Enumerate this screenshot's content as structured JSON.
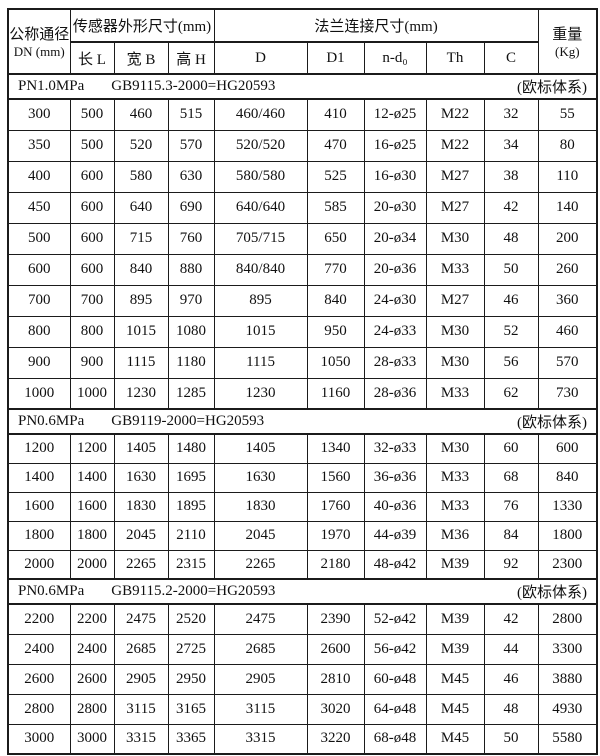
{
  "page": {
    "background": "#ffffff",
    "border_color": "#1b1b1b",
    "text_color": "#101010"
  },
  "table": {
    "header": {
      "dn_line1": "公称通径",
      "dn_line2": "DN (mm)",
      "group_sensor": "传感器外形尺寸(mm)",
      "group_flange": "法兰连接尺寸(mm)",
      "weight_line1": "重量",
      "weight_line2": "(Kg)",
      "sub_columns": [
        "长 L",
        "宽 B",
        "高 H",
        "D",
        "D1",
        "n-d₀",
        "Th",
        "C"
      ]
    },
    "sections": [
      {
        "pressure": "PN1.0MPa",
        "standard": "GB9115.3-2000=HG20593",
        "note": "(欧标体系)",
        "rows": [
          [
            "300",
            "500",
            "460",
            "515",
            "460/460",
            "410",
            "12-ø25",
            "M22",
            "32",
            "55"
          ],
          [
            "350",
            "500",
            "520",
            "570",
            "520/520",
            "470",
            "16-ø25",
            "M22",
            "34",
            "80"
          ],
          [
            "400",
            "600",
            "580",
            "630",
            "580/580",
            "525",
            "16-ø30",
            "M27",
            "38",
            "110"
          ],
          [
            "450",
            "600",
            "640",
            "690",
            "640/640",
            "585",
            "20-ø30",
            "M27",
            "42",
            "140"
          ],
          [
            "500",
            "600",
            "715",
            "760",
            "705/715",
            "650",
            "20-ø34",
            "M30",
            "48",
            "200"
          ],
          [
            "600",
            "600",
            "840",
            "880",
            "840/840",
            "770",
            "20-ø36",
            "M33",
            "50",
            "260"
          ],
          [
            "700",
            "700",
            "895",
            "970",
            "895",
            "840",
            "24-ø30",
            "M27",
            "46",
            "360"
          ],
          [
            "800",
            "800",
            "1015",
            "1080",
            "1015",
            "950",
            "24-ø33",
            "M30",
            "52",
            "460"
          ],
          [
            "900",
            "900",
            "1115",
            "1180",
            "1115",
            "1050",
            "28-ø33",
            "M30",
            "56",
            "570"
          ],
          [
            "1000",
            "1000",
            "1230",
            "1285",
            "1230",
            "1160",
            "28-ø36",
            "M33",
            "62",
            "730"
          ]
        ]
      },
      {
        "pressure": "PN0.6MPa",
        "standard": "GB9119-2000=HG20593",
        "note": "(欧标体系)",
        "rows": [
          [
            "1200",
            "1200",
            "1405",
            "1480",
            "1405",
            "1340",
            "32-ø33",
            "M30",
            "60",
            "600"
          ],
          [
            "1400",
            "1400",
            "1630",
            "1695",
            "1630",
            "1560",
            "36-ø36",
            "M33",
            "68",
            "840"
          ],
          [
            "1600",
            "1600",
            "1830",
            "1895",
            "1830",
            "1760",
            "40-ø36",
            "M33",
            "76",
            "1330"
          ],
          [
            "1800",
            "1800",
            "2045",
            "2110",
            "2045",
            "1970",
            "44-ø39",
            "M36",
            "84",
            "1800"
          ],
          [
            "2000",
            "2000",
            "2265",
            "2315",
            "2265",
            "2180",
            "48-ø42",
            "M39",
            "92",
            "2300"
          ]
        ]
      },
      {
        "pressure": "PN0.6MPa",
        "standard": "GB9115.2-2000=HG20593",
        "note": "(欧标体系)",
        "rows": [
          [
            "2200",
            "2200",
            "2475",
            "2520",
            "2475",
            "2390",
            "52-ø42",
            "M39",
            "42",
            "2800"
          ],
          [
            "2400",
            "2400",
            "2685",
            "2725",
            "2685",
            "2600",
            "56-ø42",
            "M39",
            "44",
            "3300"
          ],
          [
            "2600",
            "2600",
            "2905",
            "2950",
            "2905",
            "2810",
            "60-ø48",
            "M45",
            "46",
            "3880"
          ],
          [
            "2800",
            "2800",
            "3115",
            "3165",
            "3115",
            "3020",
            "64-ø48",
            "M45",
            "48",
            "4930"
          ],
          [
            "3000",
            "3000",
            "3315",
            "3365",
            "3315",
            "3220",
            "68-ø48",
            "M45",
            "50",
            "5580"
          ]
        ]
      }
    ]
  }
}
